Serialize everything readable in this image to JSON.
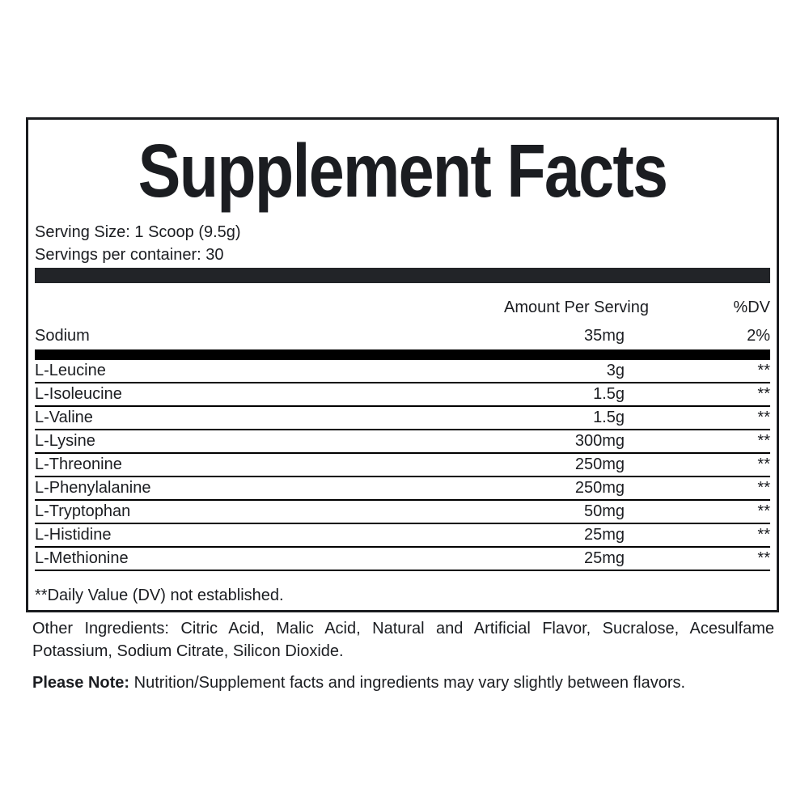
{
  "label": {
    "title": "Supplement Facts",
    "serving_size": "Serving Size: 1 Scoop (9.5g)",
    "servings_per_container": "Servings per container: 30",
    "columns": {
      "amount": "Amount Per Serving",
      "dv": "%DV"
    },
    "sodium_row": {
      "name": "Sodium",
      "amount": "35mg",
      "dv": "2%"
    },
    "rows": [
      {
        "name": "L-Leucine",
        "amount": "3g",
        "dv": "**"
      },
      {
        "name": "L-Isoleucine",
        "amount": "1.5g",
        "dv": "**"
      },
      {
        "name": "L-Valine",
        "amount": "1.5g",
        "dv": "**"
      },
      {
        "name": "L-Lysine",
        "amount": "300mg",
        "dv": "**"
      },
      {
        "name": "L-Threonine",
        "amount": "250mg",
        "dv": "**"
      },
      {
        "name": "L-Phenylalanine",
        "amount": "250mg",
        "dv": "**"
      },
      {
        "name": "L-Tryptophan",
        "amount": "50mg",
        "dv": "**"
      },
      {
        "name": "L-Histidine",
        "amount": "25mg",
        "dv": "**"
      },
      {
        "name": "L-Methionine",
        "amount": "25mg",
        "dv": "**"
      }
    ],
    "footnote": "**Daily Value (DV) not established."
  },
  "below": {
    "other_ingredients_line1": "Other Ingredients: Citric Acid, Malic Acid, Natural and Artificial Flavor, Sucralose, Acesulfame",
    "other_ingredients_line2": "Potassium, Sodium Citrate, Silicon Dioxide.",
    "please_note_label": "Please Note:",
    "please_note_text": "Nutrition/Supplement facts and ingredients may vary slightly between flavors."
  },
  "colors": {
    "text": "#1b1d21",
    "bar_dark": "#222428",
    "bar_black": "#000000",
    "border": "#1a1c1f"
  }
}
